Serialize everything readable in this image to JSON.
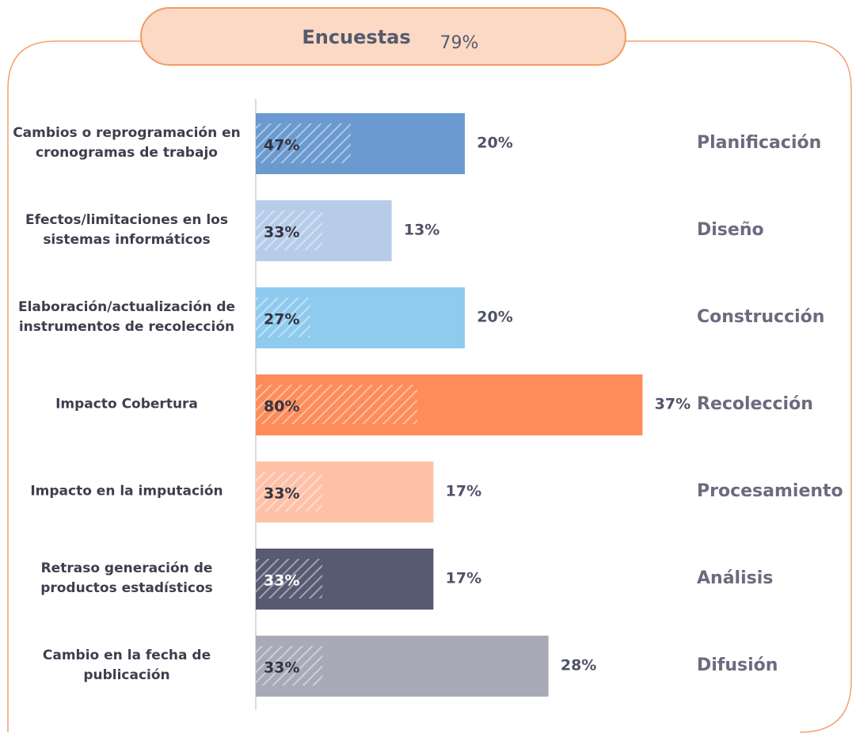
{
  "chart_data": {
    "type": "bar",
    "orientation": "horizontal",
    "title": "Encuestas",
    "summary": {
      "value": 79,
      "label": "79%"
    },
    "categories": [
      "Cambios o reprogramación en cronogramas de trabajo",
      "Efectos/limitaciones en los sistemas informáticos",
      "Elaboración/actualización de instrumentos de recolección",
      "Impacto Cobertura",
      "Impacto en la  imputación",
      "Retraso generación de productos estadísticos",
      "Cambio en la fecha de publicación"
    ],
    "stages": [
      "Planificación",
      "Diseño",
      "Construcción",
      "Recolección",
      "Procesamiento",
      "Análisis",
      "Difusión"
    ],
    "xlim": [
      0,
      40
    ],
    "x2lim": [
      0,
      100
    ],
    "series": [
      {
        "values": [
          20,
          13,
          20,
          37,
          17,
          17,
          28
        ],
        "value_labels": [
          "20%",
          "13%",
          "20%",
          "37%",
          "17%",
          "17%",
          "28%"
        ],
        "colors": [
          "#6a9ad0",
          "#b7cce9",
          "#8ecbef",
          "#fe8b5a",
          "#fec1a8",
          "#575a70",
          "#a8aab7"
        ]
      },
      {
        "axis": "x2",
        "pattern": "hatch",
        "values": [
          47,
          33,
          27,
          80,
          33,
          33,
          33
        ],
        "value_labels": [
          "47%",
          "33%",
          "27%",
          "80%",
          "33%",
          "33%",
          "33%"
        ]
      }
    ]
  }
}
